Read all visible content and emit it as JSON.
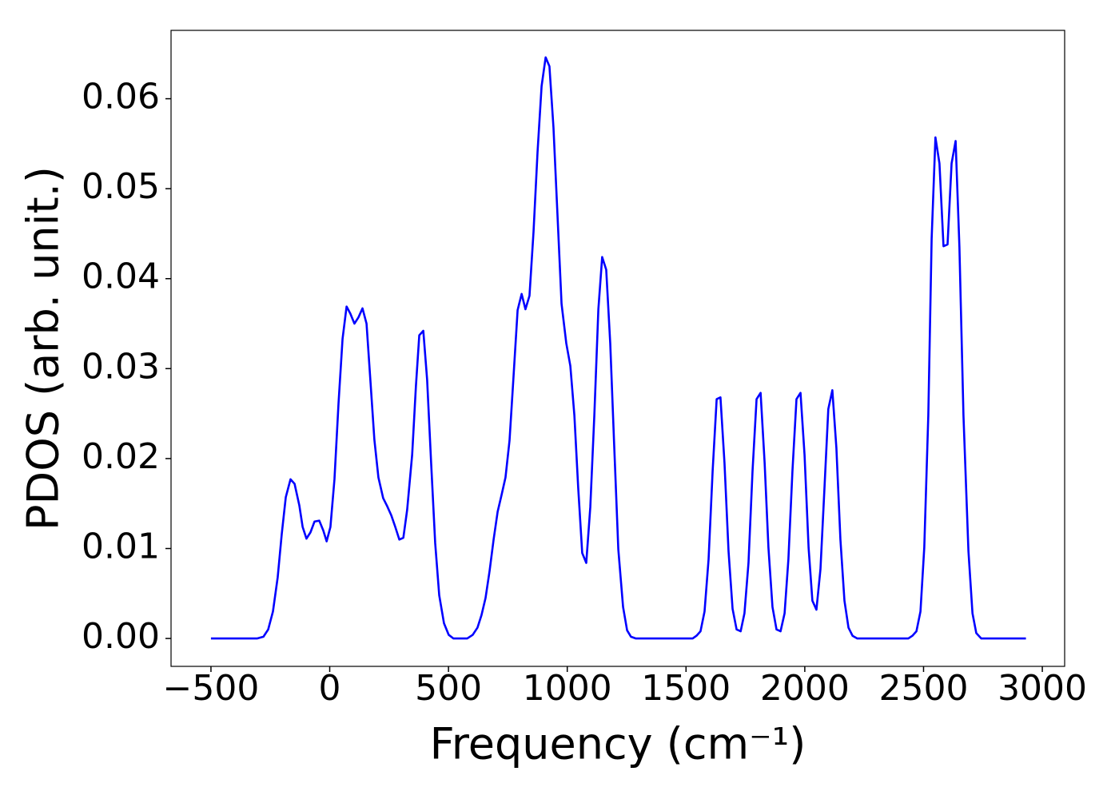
{
  "chart_data": {
    "type": "line",
    "xlabel": "Frequency (cm⁻¹)",
    "ylabel": "PDOS (arb. unit.)",
    "x": [
      -500,
      -306,
      -279,
      -259,
      -239,
      -219,
      -202,
      -185,
      -165,
      -148,
      -128,
      -114,
      -98,
      -81,
      -64,
      -44,
      -27,
      -13,
      3,
      20,
      37,
      54,
      71,
      87,
      104,
      121,
      138,
      155,
      172,
      188,
      205,
      225,
      242,
      259,
      276,
      293,
      310,
      326,
      347,
      363,
      377,
      394,
      410,
      427,
      444,
      461,
      481,
      501,
      521,
      579,
      602,
      622,
      639,
      656,
      673,
      690,
      707,
      723,
      740,
      757,
      774,
      791,
      808,
      824,
      841,
      858,
      875,
      892,
      909,
      925,
      942,
      959,
      976,
      996,
      1013,
      1030,
      1046,
      1063,
      1080,
      1097,
      1114,
      1131,
      1147,
      1164,
      1181,
      1198,
      1215,
      1235,
      1252,
      1268,
      1289,
      1528,
      1544,
      1561,
      1578,
      1595,
      1612,
      1629,
      1645,
      1662,
      1679,
      1696,
      1713,
      1730,
      1746,
      1763,
      1780,
      1797,
      1814,
      1831,
      1847,
      1864,
      1881,
      1898,
      1915,
      1931,
      1948,
      1965,
      1982,
      1999,
      2016,
      2032,
      2049,
      2066,
      2083,
      2099,
      2116,
      2133,
      2150,
      2167,
      2184,
      2201,
      2221,
      2436,
      2453,
      2470,
      2487,
      2503,
      2520,
      2534,
      2550,
      2567,
      2584,
      2601,
      2618,
      2635,
      2651,
      2668,
      2689,
      2706,
      2722,
      2743,
      2931
    ],
    "series": [
      {
        "color": "#0000ff",
        "values": [
          0,
          0,
          0.0002,
          0.001,
          0.003,
          0.0068,
          0.0116,
          0.0157,
          0.0177,
          0.0172,
          0.0148,
          0.0124,
          0.0111,
          0.0118,
          0.013,
          0.0131,
          0.012,
          0.0108,
          0.0124,
          0.0177,
          0.0261,
          0.0333,
          0.0369,
          0.0361,
          0.035,
          0.0357,
          0.0367,
          0.035,
          0.0284,
          0.0221,
          0.0179,
          0.0156,
          0.0147,
          0.0137,
          0.0124,
          0.011,
          0.0112,
          0.0143,
          0.0204,
          0.0281,
          0.0337,
          0.0342,
          0.0288,
          0.0195,
          0.0106,
          0.0048,
          0.0017,
          0.0004,
          0,
          0,
          0.0004,
          0.0012,
          0.0026,
          0.0045,
          0.0075,
          0.011,
          0.0141,
          0.0159,
          0.0179,
          0.022,
          0.0292,
          0.0365,
          0.0383,
          0.0366,
          0.0381,
          0.0452,
          0.0541,
          0.0614,
          0.0646,
          0.0636,
          0.0568,
          0.047,
          0.0372,
          0.0328,
          0.0303,
          0.0248,
          0.0168,
          0.0095,
          0.0084,
          0.0146,
          0.0248,
          0.0366,
          0.0424,
          0.041,
          0.0328,
          0.0212,
          0.0099,
          0.0035,
          0.0009,
          0.0002,
          0,
          0,
          0.0003,
          0.0008,
          0.003,
          0.0088,
          0.0186,
          0.0266,
          0.0268,
          0.0195,
          0.0097,
          0.0033,
          0.001,
          0.0008,
          0.0028,
          0.0084,
          0.0186,
          0.0266,
          0.0273,
          0.0195,
          0.0101,
          0.0035,
          0.001,
          0.0008,
          0.0028,
          0.0088,
          0.0186,
          0.0266,
          0.0273,
          0.0204,
          0.0101,
          0.0042,
          0.0032,
          0.0077,
          0.0168,
          0.0255,
          0.0276,
          0.0212,
          0.011,
          0.0042,
          0.0012,
          0.0003,
          0,
          0,
          0.0003,
          0.0008,
          0.003,
          0.0101,
          0.0248,
          0.0444,
          0.0557,
          0.0528,
          0.0436,
          0.0438,
          0.0528,
          0.0553,
          0.0435,
          0.0248,
          0.0097,
          0.0028,
          0.0006,
          0,
          0
        ]
      }
    ],
    "xlim": [
      -668,
      3094
    ],
    "ylim": [
      -0.0031,
      0.0676
    ],
    "xticks": [
      {
        "value": -500,
        "label": "−500"
      },
      0,
      500,
      1000,
      1500,
      2000,
      2500,
      3000
    ],
    "yticks": [
      {
        "value": 0,
        "label": "0.00"
      },
      {
        "value": 0.01,
        "label": "0.01"
      },
      {
        "value": 0.02,
        "label": "0.02"
      },
      {
        "value": 0.03,
        "label": "0.03"
      },
      {
        "value": 0.04,
        "label": "0.04"
      },
      {
        "value": 0.05,
        "label": "0.05"
      },
      {
        "value": 0.06,
        "label": "0.06"
      }
    ],
    "grid": false
  }
}
